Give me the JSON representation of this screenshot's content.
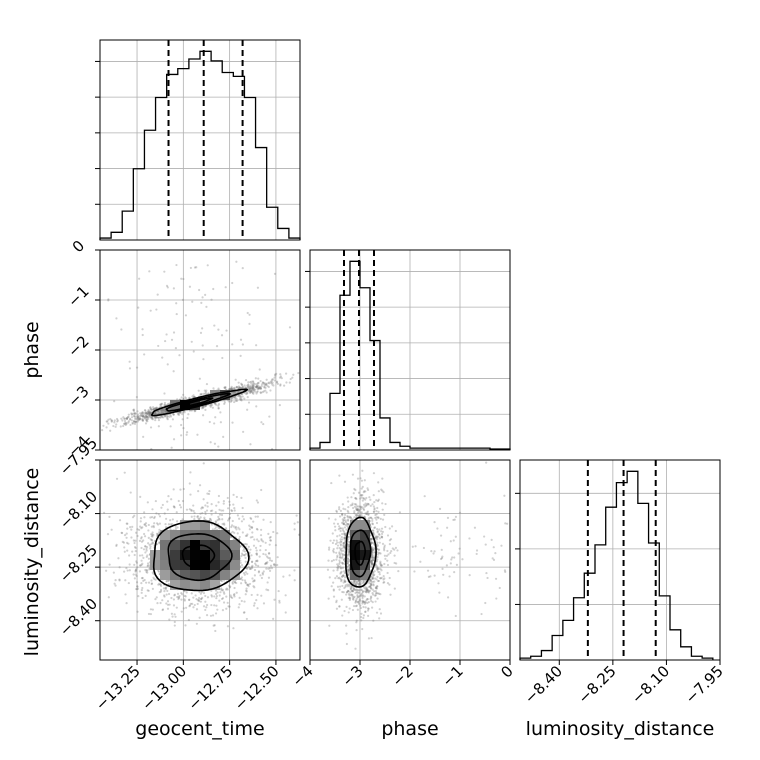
{
  "chart_data": {
    "type": "corner",
    "parameters": [
      "geocent_time",
      "phase",
      "luminosity_distance"
    ],
    "grid": true,
    "ranges": {
      "geocent_time": [
        -13.45,
        -12.37
      ],
      "phase": [
        -4.0,
        0.0
      ],
      "luminosity_distance": [
        -8.51,
        -7.95
      ]
    },
    "ticks": {
      "geocent_time": {
        "values": [
          -13.25,
          -13.0,
          -12.75,
          -12.5
        ],
        "labels": [
          "−13.25",
          "−13.00",
          "−12.75",
          "−12.50"
        ]
      },
      "phase": {
        "values": [
          -4,
          -3,
          -2,
          -1,
          0
        ],
        "labels": [
          "−4",
          "−3",
          "−2",
          "−1",
          "0"
        ]
      },
      "luminosity_distance": {
        "values": [
          -8.4,
          -8.25,
          -8.1,
          -7.95
        ],
        "labels": [
          "−8.40",
          "−8.25",
          "−8.10",
          "−7.95"
        ]
      }
    },
    "quantiles": {
      "geocent_time": [
        -13.08,
        -12.89,
        -12.68
      ],
      "phase": [
        -3.32,
        -3.02,
        -2.72
      ],
      "luminosity_distance": [
        -8.32,
        -8.22,
        -8.13
      ]
    },
    "histograms": {
      "geocent_time": {
        "edges": [
          -13.45,
          -13.39,
          -13.33,
          -13.27,
          -13.21,
          -13.15,
          -13.09,
          -13.03,
          -12.97,
          -12.91,
          -12.85,
          -12.79,
          -12.73,
          -12.67,
          -12.61,
          -12.55,
          -12.49,
          -12.43,
          -12.37
        ],
        "counts": [
          1,
          4,
          15,
          37,
          57,
          74,
          86,
          89,
          94,
          98,
          93,
          87,
          85,
          74,
          48,
          17,
          6,
          1
        ]
      },
      "phase": {
        "edges": [
          -4.0,
          -3.8,
          -3.6,
          -3.4,
          -3.2,
          -3.0,
          -2.8,
          -2.6,
          -2.4,
          -2.2,
          -2.0,
          -1.8,
          -1.6,
          -1.4,
          -1.2,
          -1.0,
          -0.8,
          -0.6,
          -0.4,
          -0.2,
          0.0
        ],
        "counts": [
          1,
          4,
          30,
          82,
          100,
          86,
          58,
          17,
          4,
          2,
          1,
          1,
          1,
          1,
          1,
          1,
          1,
          1,
          0.5,
          0.5
        ]
      },
      "luminosity_distance": {
        "edges": [
          -8.51,
          -8.48,
          -8.45,
          -8.42,
          -8.39,
          -8.36,
          -8.33,
          -8.3,
          -8.27,
          -8.24,
          -8.21,
          -8.18,
          -8.15,
          -8.12,
          -8.09,
          -8.06,
          -8.03,
          -8.0,
          -7.97
        ],
        "counts": [
          1,
          2,
          5,
          13,
          21,
          33,
          46,
          61,
          81,
          94,
          100,
          83,
          62,
          34,
          16,
          7,
          2,
          1
        ]
      }
    },
    "joint": {
      "phase_vs_geocent_time": {
        "mean": [
          -12.93,
          -3.05
        ],
        "std": [
          0.17,
          0.17
        ],
        "correlation": 0.94,
        "contour_levels": [
          0.5,
          1.0,
          1.5
        ]
      },
      "luminosity_distance_vs_geocent_time": {
        "mean": [
          -12.92,
          -8.22
        ],
        "std": [
          0.17,
          0.065
        ],
        "correlation": 0.0,
        "contour_levels": [
          0.5,
          1.0,
          1.5
        ]
      },
      "luminosity_distance_vs_phase": {
        "mean": [
          -3.0,
          -8.21
        ],
        "std": [
          0.2,
          0.065
        ],
        "correlation": 0.05,
        "contour_levels": [
          0.5,
          1.0,
          1.5
        ]
      }
    }
  }
}
